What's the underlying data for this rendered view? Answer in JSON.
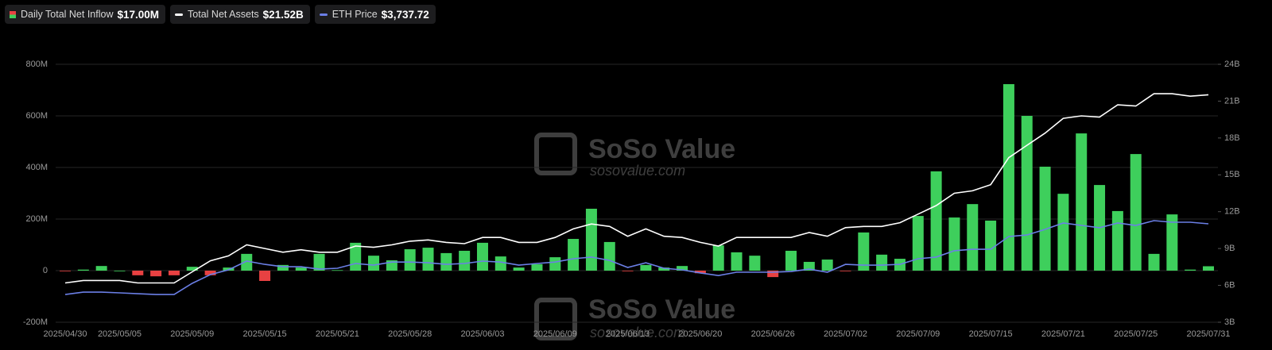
{
  "chart_data": {
    "type": "combo",
    "categories": [
      "2025/04/30",
      null,
      null,
      "2025/05/05",
      null,
      null,
      null,
      "2025/05/09",
      null,
      null,
      null,
      "2025/05/15",
      null,
      null,
      null,
      "2025/05/21",
      null,
      null,
      null,
      "2025/05/28",
      null,
      null,
      null,
      "2025/06/03",
      null,
      null,
      null,
      "2025/06/09",
      null,
      null,
      null,
      "2025/06/13",
      null,
      null,
      null,
      "2025/06/20",
      null,
      null,
      null,
      "2025/06/26",
      null,
      null,
      null,
      "2025/07/02",
      null,
      null,
      null,
      "2025/07/09",
      null,
      null,
      null,
      "2025/07/15",
      null,
      null,
      null,
      "2025/07/21",
      null,
      null,
      null,
      "2025/07/25",
      null,
      null,
      null,
      "2025/07/31"
    ],
    "series": [
      {
        "name": "Daily Total Net Inflow",
        "latest_label": "$17.00M",
        "type": "bar",
        "axis": "y",
        "color": "#3ecf5c",
        "negative_color": "#e84142",
        "values": [
          -2,
          4,
          18,
          0,
          -18,
          -22,
          -18,
          15,
          -18,
          12,
          65,
          -40,
          22,
          12,
          65,
          2,
          108,
          58,
          40,
          83,
          89,
          68,
          77,
          108,
          55,
          12,
          25,
          52,
          123,
          240,
          111,
          -2,
          22,
          12,
          18,
          -10,
          98,
          71,
          58,
          -25,
          77,
          34,
          43,
          -2,
          148,
          62,
          46,
          212,
          385,
          206,
          258,
          194,
          723,
          600,
          403,
          298,
          532,
          332,
          231,
          452,
          65,
          218,
          4,
          17
        ]
      },
      {
        "name": "Total Net Assets",
        "latest_label": "$21.52B",
        "type": "line",
        "axis": "y2",
        "color": "#ffffff",
        "values": [
          6.2,
          6.4,
          6.4,
          6.4,
          6.2,
          6.2,
          6.2,
          7.1,
          8.0,
          8.4,
          9.3,
          9.0,
          8.7,
          8.9,
          8.7,
          8.7,
          9.2,
          9.1,
          9.3,
          9.6,
          9.7,
          9.5,
          9.4,
          9.9,
          9.9,
          9.5,
          9.5,
          9.9,
          10.6,
          11.0,
          10.8,
          10.0,
          10.6,
          10.0,
          9.9,
          9.5,
          9.2,
          9.9,
          9.9,
          9.9,
          9.9,
          10.3,
          10.0,
          10.7,
          10.8,
          10.8,
          11.1,
          11.8,
          12.5,
          13.5,
          13.7,
          14.2,
          16.4,
          17.4,
          18.4,
          19.6,
          19.8,
          19.7,
          20.7,
          20.6,
          21.6,
          21.6,
          21.4,
          21.52
        ]
      },
      {
        "name": "ETH Price",
        "latest_label": "$3,737.72",
        "type": "line",
        "axis": "y3",
        "color": "#6b7fe6",
        "values": [
          1800,
          1865,
          1865,
          1845,
          1820,
          1800,
          1800,
          2105,
          2345,
          2475,
          2715,
          2625,
          2560,
          2560,
          2495,
          2520,
          2650,
          2605,
          2690,
          2690,
          2670,
          2625,
          2650,
          2715,
          2690,
          2605,
          2650,
          2690,
          2780,
          2825,
          2735,
          2540,
          2670,
          2520,
          2475,
          2390,
          2320,
          2410,
          2410,
          2410,
          2430,
          2495,
          2410,
          2625,
          2605,
          2605,
          2625,
          2780,
          2825,
          3000,
          3040,
          3040,
          3390,
          3430,
          3585,
          3760,
          3695,
          3630,
          3760,
          3695,
          3825,
          3780,
          3780,
          3737.72
        ]
      }
    ],
    "ylim": [
      -200,
      800
    ],
    "yticks": [
      {
        "value": -200,
        "label": "-200M"
      },
      0,
      {
        "value": 200,
        "label": "200M"
      },
      {
        "value": 400,
        "label": "400M"
      },
      {
        "value": 600,
        "label": "600M"
      },
      {
        "value": 800,
        "label": "800M"
      }
    ],
    "y2lim": [
      3,
      24
    ],
    "y2ticks": [
      {
        "value": 3,
        "label": "3B"
      },
      {
        "value": 6,
        "label": "6B"
      },
      {
        "value": 9,
        "label": "9B"
      },
      {
        "value": 12,
        "label": "12B"
      },
      {
        "value": 15,
        "label": "15B"
      },
      {
        "value": 18,
        "label": "18B"
      },
      {
        "value": 21,
        "label": "21B"
      },
      {
        "value": 24,
        "label": "24B"
      }
    ],
    "y3lim": [
      1040,
      8110
    ],
    "grid": true,
    "watermark": {
      "brand": "SoSo Value",
      "site": "sosovalue.com"
    }
  }
}
